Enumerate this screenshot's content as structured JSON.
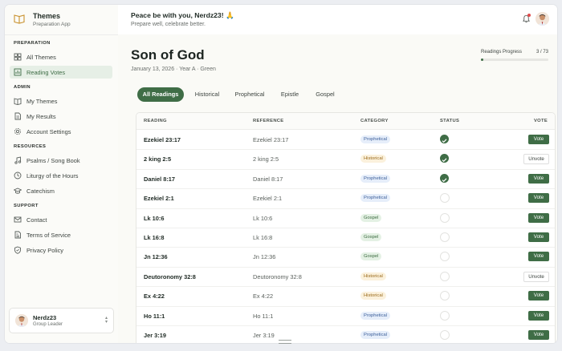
{
  "brand": {
    "title": "Themes",
    "subtitle": "Preparation App"
  },
  "sidebar": {
    "sections": [
      {
        "label": "PREPARATION",
        "items": [
          {
            "label": "All Themes",
            "icon": "grid-icon"
          },
          {
            "label": "Reading Votes",
            "icon": "bar-chart-icon",
            "active": true
          }
        ]
      },
      {
        "label": "ADMIN",
        "items": [
          {
            "label": "My Themes",
            "icon": "book-icon"
          },
          {
            "label": "My Results",
            "icon": "file-icon"
          },
          {
            "label": "Account Settings",
            "icon": "gear-icon"
          }
        ]
      },
      {
        "label": "RESOURCES",
        "items": [
          {
            "label": "Psalms / Song Book",
            "icon": "music-note-icon"
          },
          {
            "label": "Liturgy of the Hours",
            "icon": "clock-icon"
          },
          {
            "label": "Catechism",
            "icon": "graduation-cap-icon"
          }
        ]
      },
      {
        "label": "SUPPORT",
        "items": [
          {
            "label": "Contact",
            "icon": "mail-icon"
          },
          {
            "label": "Terms of Service",
            "icon": "document-icon"
          },
          {
            "label": "Privacy Policy",
            "icon": "shield-icon"
          }
        ]
      }
    ],
    "user": {
      "name": "Nerdz23",
      "role": "Group Leader"
    }
  },
  "header": {
    "greeting": "Peace be with you, Nerdz23! 🙏",
    "subtitle": "Prepare well, celebrate better."
  },
  "page": {
    "title": "Son of God",
    "meta": "January 13, 2026 · Year A · Green"
  },
  "progress": {
    "label": "Readings Progress",
    "count": "3 / 73",
    "fraction": 0.041
  },
  "tabs": [
    {
      "label": "All Readings",
      "active": true
    },
    {
      "label": "Historical"
    },
    {
      "label": "Prophetical"
    },
    {
      "label": "Epistle"
    },
    {
      "label": "Gospel"
    }
  ],
  "table": {
    "headers": {
      "reading": "READING",
      "reference": "REFERENCE",
      "category": "CATEGORY",
      "status": "STATUS",
      "vote": "VOTE"
    },
    "rows": [
      {
        "reading": "Ezekiel 23:17",
        "reference": "Ezekiel 23:17",
        "category": "Prophetical",
        "done": true,
        "action": "Vote"
      },
      {
        "reading": "2 king 2:5",
        "reference": "2 king 2:5",
        "category": "Historical",
        "done": true,
        "action": "Unvote"
      },
      {
        "reading": "Daniel 8:17",
        "reference": "Daniel 8:17",
        "category": "Prophetical",
        "done": true,
        "action": "Vote"
      },
      {
        "reading": "Ezekiel 2:1",
        "reference": "Ezekiel 2:1",
        "category": "Prophetical",
        "done": false,
        "action": "Vote"
      },
      {
        "reading": "Lk 10:6",
        "reference": "Lk 10:6",
        "category": "Gospel",
        "done": false,
        "action": "Vote"
      },
      {
        "reading": "Lk 16:8",
        "reference": "Lk 16:8",
        "category": "Gospel",
        "done": false,
        "action": "Vote"
      },
      {
        "reading": "Jn 12:36",
        "reference": "Jn 12:36",
        "category": "Gospel",
        "done": false,
        "action": "Vote"
      },
      {
        "reading": "Deutoronomy 32:8",
        "reference": "Deutoronomy 32:8",
        "category": "Historical",
        "done": false,
        "action": "Unvote"
      },
      {
        "reading": "Ex 4:22",
        "reference": "Ex 4:22",
        "category": "Historical",
        "done": false,
        "action": "Vote"
      },
      {
        "reading": "Ho 11:1",
        "reference": "Ho 11:1",
        "category": "Prophetical",
        "done": false,
        "action": "Vote"
      },
      {
        "reading": "Jer 3:19",
        "reference": "Jer 3:19",
        "category": "Prophetical",
        "done": false,
        "action": "Vote"
      }
    ]
  },
  "colors": {
    "accent": "#3f6d46",
    "notification": "#e14b4b"
  }
}
